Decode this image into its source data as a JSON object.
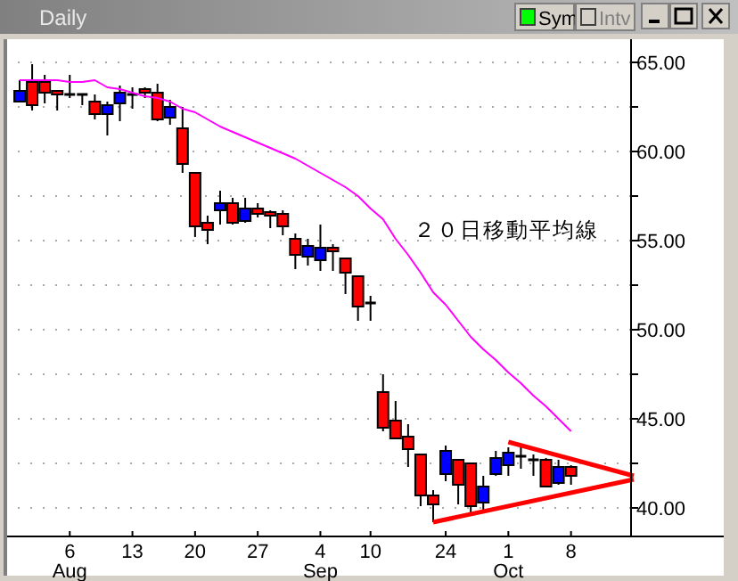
{
  "chart_data": {
    "type": "candlestick",
    "title": "Daily",
    "categories": [
      null,
      null,
      null,
      null,
      "6\nAug",
      null,
      null,
      null,
      null,
      "13",
      null,
      null,
      null,
      null,
      "20",
      null,
      null,
      null,
      null,
      "27",
      null,
      null,
      null,
      null,
      "4\nSep",
      null,
      null,
      null,
      "10",
      null,
      null,
      null,
      null,
      null,
      "24",
      null,
      null,
      null,
      null,
      "1\nOct",
      null,
      null,
      null,
      null,
      "8",
      null,
      null,
      null,
      null,
      null
    ],
    "ohlc": [
      [
        62.8,
        64.0,
        62.8,
        63.4
      ],
      [
        63.9,
        64.9,
        62.3,
        62.6
      ],
      [
        63.9,
        64.3,
        62.7,
        63.3
      ],
      [
        63.4,
        63.4,
        62.3,
        63.2
      ],
      [
        63.2,
        64.3,
        63.0,
        63.1
      ],
      [
        63.2,
        63.2,
        62.6,
        63.1
      ],
      [
        62.8,
        63.2,
        61.8,
        62.1
      ],
      [
        62.1,
        62.8,
        60.9,
        62.6
      ],
      [
        62.7,
        63.7,
        61.7,
        63.3
      ],
      [
        63.2,
        63.6,
        62.4,
        63.2
      ],
      [
        63.5,
        63.6,
        63.0,
        63.3
      ],
      [
        63.3,
        63.8,
        61.7,
        61.8
      ],
      [
        61.9,
        62.9,
        61.5,
        62.5
      ],
      [
        61.3,
        62.5,
        58.8,
        59.3
      ],
      [
        58.8,
        58.8,
        55.2,
        55.8
      ],
      [
        56.0,
        56.4,
        54.8,
        55.6
      ],
      [
        56.7,
        57.8,
        55.9,
        57.1
      ],
      [
        57.1,
        57.4,
        55.9,
        56.0
      ],
      [
        56.1,
        57.4,
        56.0,
        56.8
      ],
      [
        56.8,
        57.1,
        56.3,
        56.5
      ],
      [
        56.6,
        56.7,
        55.7,
        56.4
      ],
      [
        56.5,
        56.7,
        55.3,
        55.8
      ],
      [
        55.1,
        55.4,
        53.4,
        54.2
      ],
      [
        54.1,
        55.1,
        53.6,
        54.7
      ],
      [
        53.9,
        55.9,
        53.3,
        54.6
      ],
      [
        54.6,
        54.8,
        53.3,
        54.4
      ],
      [
        54.0,
        54.0,
        52.0,
        53.2
      ],
      [
        53.0,
        53.0,
        50.5,
        51.3
      ],
      [
        51.5,
        51.9,
        50.5,
        51.4
      ],
      [
        46.5,
        47.5,
        44.3,
        44.5
      ],
      [
        44.9,
        46.0,
        43.9,
        43.9
      ],
      [
        44.0,
        44.7,
        42.3,
        43.3
      ],
      [
        43.0,
        43.0,
        40.1,
        40.7
      ],
      [
        40.7,
        41.0,
        39.2,
        40.2
      ],
      [
        41.9,
        43.5,
        41.5,
        43.2
      ],
      [
        42.7,
        42.7,
        40.2,
        41.3
      ],
      [
        42.5,
        42.5,
        39.7,
        40.1
      ],
      [
        40.3,
        41.8,
        39.7,
        41.2
      ],
      [
        41.9,
        43.2,
        41.8,
        42.8
      ],
      [
        42.4,
        43.4,
        41.8,
        43.1
      ],
      [
        42.9,
        43.5,
        42.2,
        42.9
      ],
      [
        42.7,
        43.0,
        41.8,
        42.7
      ],
      [
        42.7,
        42.8,
        41.2,
        41.2
      ],
      [
        41.4,
        42.7,
        41.3,
        42.3
      ],
      [
        42.3,
        42.4,
        41.3,
        41.8
      ],
      null,
      null,
      null,
      null,
      null
    ],
    "colors": [
      "#0000ff",
      "#ff0000",
      "#ff0000",
      "#ff0000",
      "#000000",
      "#000000",
      "#ff0000",
      "#0000ff",
      "#0000ff",
      "#000000",
      "#ff0000",
      "#ff0000",
      "#0000ff",
      "#ff0000",
      "#ff0000",
      "#ff0000",
      "#0000ff",
      "#ff0000",
      "#0000ff",
      "#ff0000",
      "#ff0000",
      "#ff0000",
      "#ff0000",
      "#0000ff",
      "#0000ff",
      "#ff0000",
      "#ff0000",
      "#ff0000",
      "#000000",
      "#ff0000",
      "#ff0000",
      "#ff0000",
      "#ff0000",
      "#ff0000",
      "#0000ff",
      "#ff0000",
      "#ff0000",
      "#0000ff",
      "#0000ff",
      "#0000ff",
      "#000000",
      "#000000",
      "#ff0000",
      "#0000ff",
      "#ff0000",
      null,
      null,
      null,
      null,
      null
    ],
    "series": [
      {
        "type": "line",
        "color": "#ff00ff",
        "values": [
          64.0,
          64.0,
          64.0,
          64.0,
          63.9,
          63.9,
          64.0,
          63.6,
          63.5,
          63.3,
          63.1,
          63.0,
          62.8,
          62.4,
          62.2,
          61.8,
          61.4,
          61.1,
          60.8,
          60.5,
          60.2,
          59.9,
          59.6,
          59.2,
          58.8,
          58.4,
          58.0,
          57.5,
          56.8,
          56.2,
          55.1,
          54.2,
          53.2,
          52.1,
          51.4,
          50.5,
          49.6,
          48.9,
          48.3,
          47.6,
          47.0,
          46.3,
          45.7,
          45.0,
          44.3,
          null,
          null,
          null,
          null,
          null
        ]
      },
      {
        "type": "line",
        "color": "#ff0000",
        "values": [
          null,
          null,
          null,
          null,
          null,
          null,
          null,
          null,
          null,
          null,
          null,
          null,
          null,
          null,
          null,
          null,
          null,
          null,
          null,
          null,
          null,
          null,
          null,
          null,
          null,
          null,
          null,
          null,
          null,
          null,
          null,
          null,
          null,
          null,
          null,
          null,
          null,
          null,
          null,
          43.7,
          null,
          null,
          null,
          null,
          null,
          null,
          null,
          null,
          null,
          41.8
        ]
      },
      {
        "type": "line",
        "color": "#ff0000",
        "values": [
          null,
          null,
          null,
          null,
          null,
          null,
          null,
          null,
          null,
          null,
          null,
          null,
          null,
          null,
          null,
          null,
          null,
          null,
          null,
          null,
          null,
          null,
          null,
          null,
          null,
          null,
          null,
          null,
          null,
          null,
          null,
          null,
          null,
          39.2,
          null,
          null,
          null,
          null,
          null,
          null,
          null,
          null,
          null,
          null,
          null,
          null,
          null,
          null,
          null,
          41.6
        ]
      }
    ],
    "ylim": [
      38.4,
      66.3
    ],
    "yticks": [
      {
        "value": 40,
        "label": "40.00"
      },
      {
        "value": 42.5,
        "label": null
      },
      {
        "value": 45,
        "label": "45.00"
      },
      {
        "value": 47.5,
        "label": null
      },
      {
        "value": 50,
        "label": "50.00"
      },
      {
        "value": 52.5,
        "label": null
      },
      {
        "value": 55,
        "label": "55.00"
      },
      {
        "value": 57.5,
        "label": null
      },
      {
        "value": 60,
        "label": "60.00"
      },
      {
        "value": 62.5,
        "label": null
      },
      {
        "value": 65,
        "label": "65.00"
      }
    ],
    "grid": "y",
    "annotations": [
      "２０日移動平均線",
      "Sym",
      "Intv"
    ]
  }
}
